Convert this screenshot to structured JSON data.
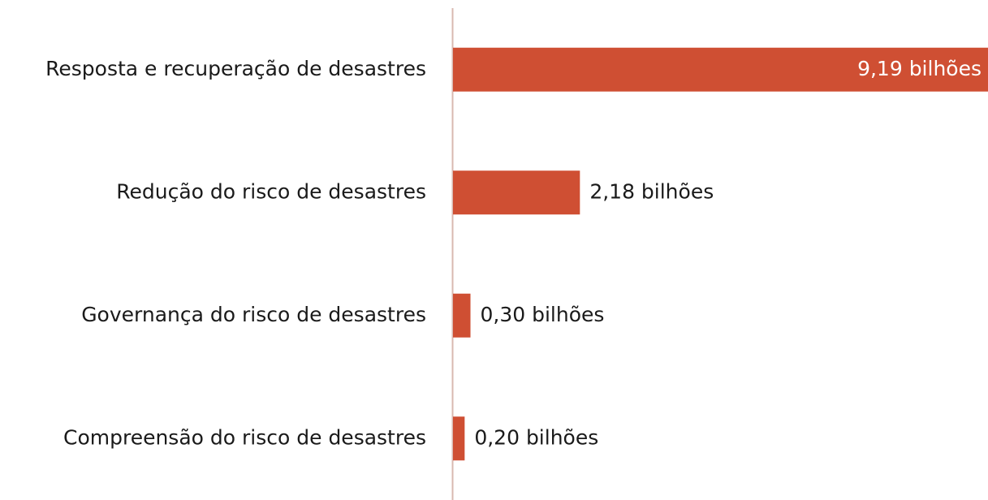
{
  "chart_data": {
    "type": "bar",
    "orientation": "horizontal",
    "categories": [
      "Resposta e recuperação de desastres",
      "Redução do risco de desastres",
      "Governança do risco de desastres",
      "Compreensão do risco de desastres"
    ],
    "values": [
      9.19,
      2.18,
      0.3,
      0.2
    ],
    "value_labels": [
      "9,19 bilhões",
      "2,18 bilhões",
      "0,30 bilhões",
      "0,20 bilhões"
    ],
    "color": "#cf4f33"
  }
}
